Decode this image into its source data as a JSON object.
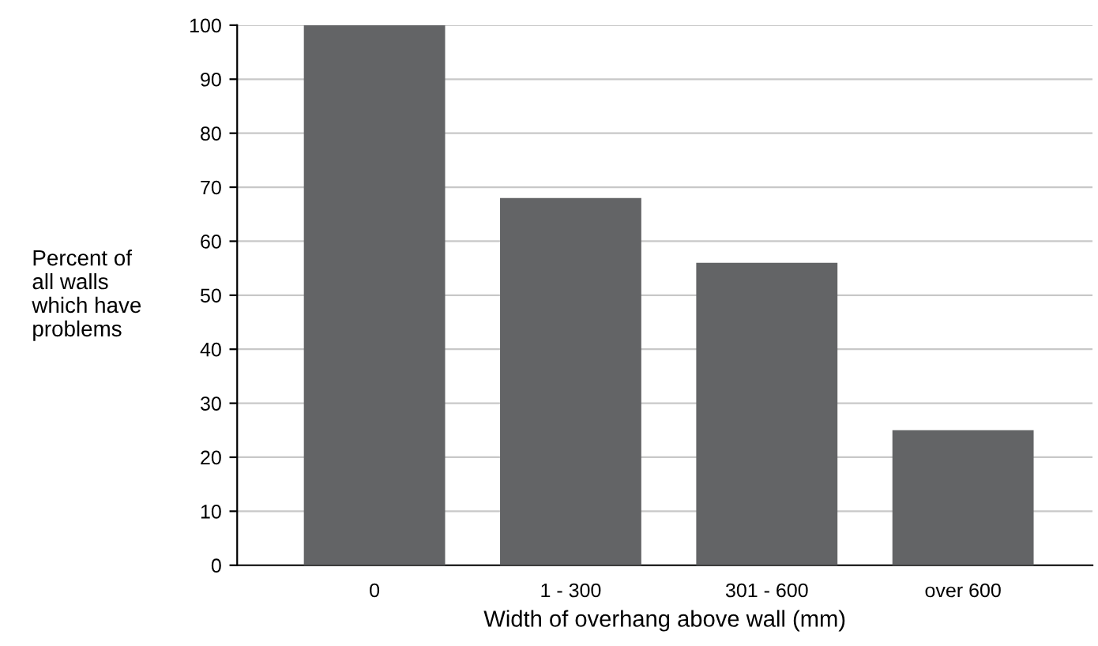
{
  "chart_data": {
    "type": "bar",
    "xlabel": "Width of overhang above wall (mm)",
    "ylabel": "Percent of\nall walls\nwhich have\nproblems",
    "categories": [
      "0",
      "1 - 300",
      "301 - 600",
      "over 600"
    ],
    "values": [
      100,
      68,
      56,
      25
    ],
    "color": "#636466",
    "ylim": [
      0,
      100
    ],
    "yticks": [
      0,
      10,
      20,
      30,
      40,
      50,
      60,
      70,
      80,
      90,
      100
    ],
    "grid": "y"
  }
}
